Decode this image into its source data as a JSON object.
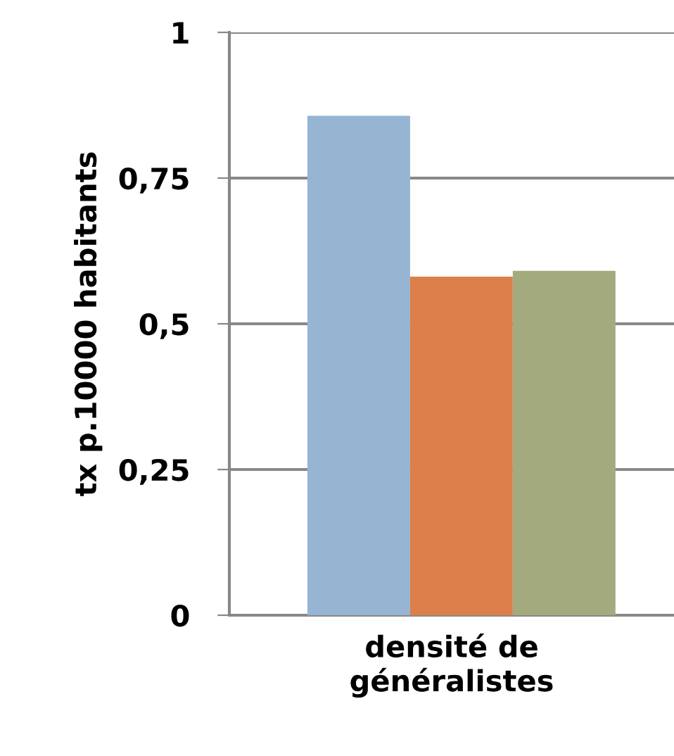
{
  "chart_data": {
    "type": "bar",
    "ylabel": "tx p.10000 habitants",
    "xlabel": "densité de\ngénéralistes",
    "categories": [
      null,
      null,
      null
    ],
    "values": [
      0.857,
      0.581,
      0.591
    ],
    "colors": [
      "#95b5d2",
      "#dd7f4a",
      "#a3aa7e"
    ],
    "ylim": [
      0,
      1
    ],
    "yticks": [
      0,
      {
        "value": 0.25,
        "label": "0,25"
      },
      {
        "value": 0.5,
        "label": "0,5"
      },
      {
        "value": 0.75,
        "label": "0,75"
      },
      1
    ],
    "grid": "y"
  }
}
